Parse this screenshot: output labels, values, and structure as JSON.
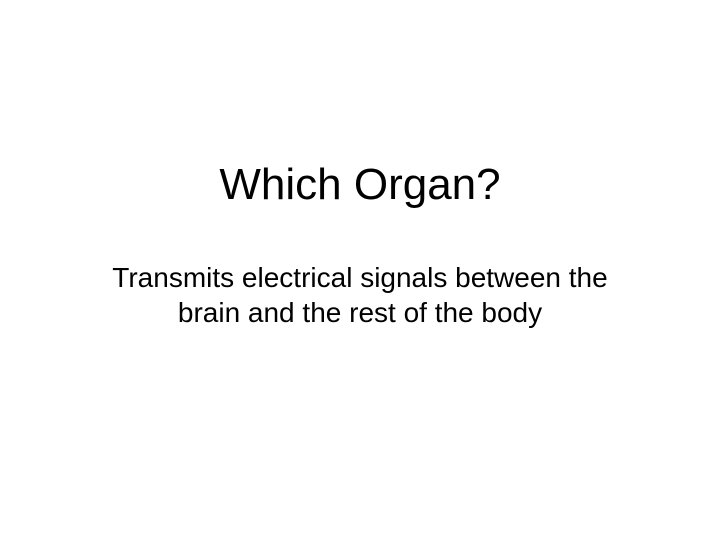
{
  "slide": {
    "title": "Which Organ?",
    "body": "Transmits electrical signals between the brain and the rest of the body",
    "background_color": "#ffffff",
    "text_color": "#000000",
    "title_fontsize": 44,
    "body_fontsize": 28,
    "font_family": "Arial"
  }
}
